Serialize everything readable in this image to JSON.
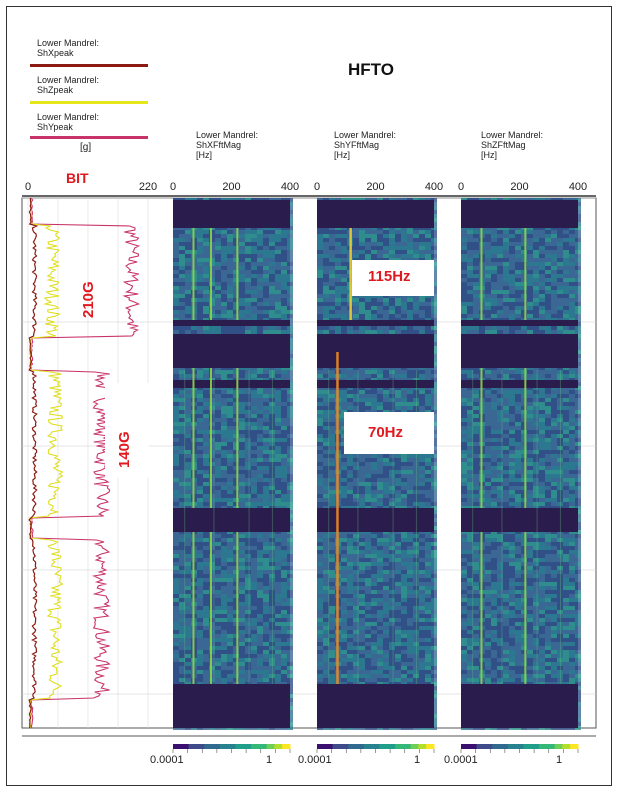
{
  "title": "HFTO",
  "legend": [
    {
      "label": "Lower Mandrel:\nShXpeak",
      "color": "#8b1a10"
    },
    {
      "label": "Lower Mandrel:\nShZpeak",
      "color": "#e6e61a"
    },
    {
      "label": "Lower Mandrel:\nShYpeak",
      "color": "#c8336a"
    }
  ],
  "unit_label": "[g]",
  "bit_label": "BIT",
  "annotations": {
    "g210": "210G",
    "g140": "140G",
    "hz115": "115Hz",
    "hz70": "70Hz"
  },
  "chart_data": [
    {
      "type": "line",
      "xlim": [
        0,
        220
      ],
      "x_ticks": [
        "0",
        "220"
      ],
      "series": [
        {
          "name": "Lower Mandrel:\nShXpeak",
          "color": "#8b1a10",
          "segments": [
            [
              0,
              10
            ],
            [
              11,
              30
            ],
            [
              31,
              50
            ],
            [
              51,
              100
            ]
          ],
          "levels": [
            15,
            15,
            15,
            15
          ]
        },
        {
          "name": "Lower Mandrel:\nShZpeak",
          "color": "#e6e61a",
          "levels": [
            60,
            55,
            50,
            50
          ]
        },
        {
          "name": "Lower Mandrel:\nShYpeak",
          "color": "#c8336a",
          "levels": [
            195,
            195,
            140,
            140
          ]
        }
      ]
    },
    {
      "type": "heatmap",
      "header": "Lower Mandrel:\nShXFftMag\n[Hz]",
      "xlim": [
        0,
        400
      ],
      "x_ticks": [
        "0",
        "200",
        "400"
      ],
      "colorbar": {
        "min": "0.0001",
        "max": "1"
      },
      "dominant_lines_hz": [
        70,
        130,
        220
      ]
    },
    {
      "type": "heatmap",
      "header": "Lower Mandrel:\nShYFftMag\n[Hz]",
      "xlim": [
        0,
        400
      ],
      "x_ticks": [
        "0",
        "200",
        "400"
      ],
      "colorbar": {
        "min": "0.0001",
        "max": "1"
      },
      "dominant_lines_hz": [
        70,
        115
      ]
    },
    {
      "type": "heatmap",
      "header": "Lower Mandrel:\nShZFftMag\n[Hz]",
      "xlim": [
        0,
        400
      ],
      "x_ticks": [
        "0",
        "200",
        "400"
      ],
      "colorbar": {
        "min": "0.0001",
        "max": "1"
      },
      "dominant_lines_hz": [
        70,
        220
      ]
    }
  ]
}
